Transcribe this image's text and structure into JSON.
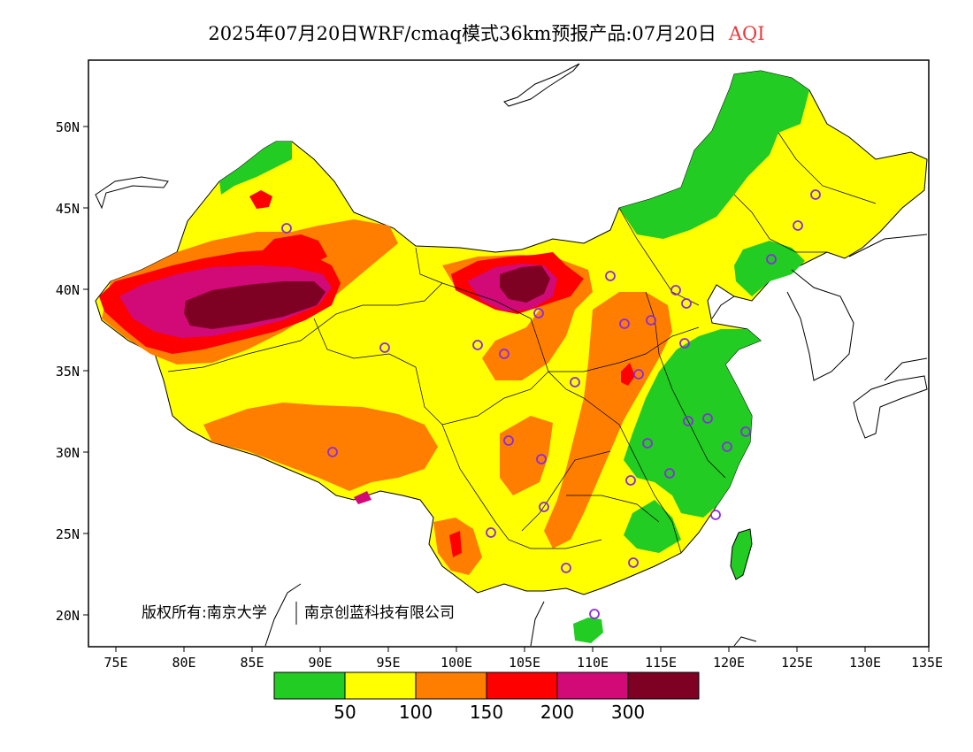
{
  "title": {
    "text": "2025年07月20日WRF/cmaq模式36km预报产品:07月20日",
    "variable": "AQI"
  },
  "map": {
    "lat_labels": [
      "50N",
      "45N",
      "40N",
      "35N",
      "30N",
      "25N",
      "20N"
    ],
    "lon_labels": [
      "75E",
      "80E",
      "85E",
      "90E",
      "95E",
      "100E",
      "105E",
      "110E",
      "115E",
      "120E",
      "125E",
      "130E",
      "135E"
    ],
    "copyright_owner": "版权所有:南京大学",
    "copyright_partner": "南京创蓝科技有限公司",
    "colors": {
      "good": "#22cc22",
      "moderate": "#ffff00",
      "unhealthy_sensitive": "#ff7e00",
      "unhealthy": "#ff0000",
      "very_unhealthy": "#d20a78",
      "hazardous": "#7e0023",
      "station_marker": "#8b2be2",
      "boundary": "#000000"
    }
  },
  "legend": {
    "colors": [
      "#22cc22",
      "#ffff00",
      "#ff7e00",
      "#ff0000",
      "#d20a78",
      "#7e0023"
    ],
    "labels": [
      "50",
      "100",
      "150",
      "200",
      "300"
    ]
  }
}
